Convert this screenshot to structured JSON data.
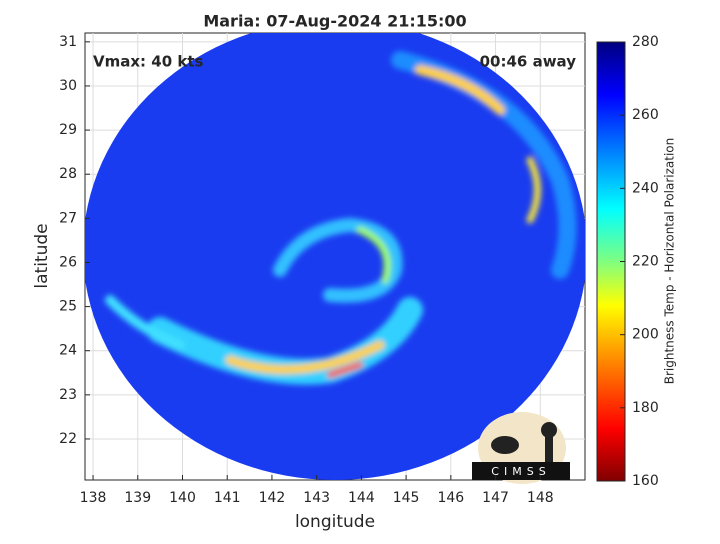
{
  "title": "Maria: 07-Aug-2024 21:15:00",
  "annotations": {
    "vmax": "Vmax: 40 kts",
    "time_away": "00:46 away"
  },
  "map": {
    "xlabel": "longitude",
    "ylabel": "latitude",
    "xlim": [
      137.82,
      149.0
    ],
    "ylim": [
      21.07,
      31.2
    ],
    "xticks": [
      138,
      139,
      140,
      141,
      142,
      143,
      144,
      145,
      146,
      147,
      148
    ],
    "yticks": [
      22,
      23,
      24,
      25,
      26,
      27,
      28,
      29,
      30,
      31
    ]
  },
  "colorbar": {
    "label": "Brightness Temp - Horizontal Polarization",
    "lim": [
      160,
      280
    ],
    "ticks": [
      160,
      180,
      200,
      220,
      240,
      260,
      280
    ]
  },
  "logo": {
    "text": "CIMSS"
  }
}
